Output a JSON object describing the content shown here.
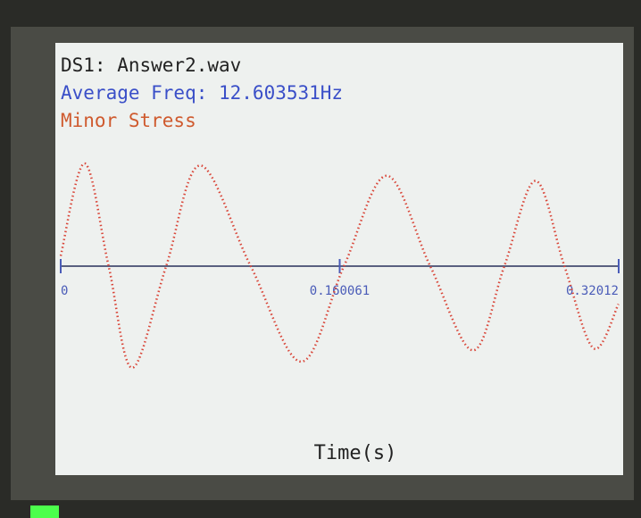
{
  "chart_data": {
    "type": "line",
    "title": "DS1: Answer2.wav",
    "subtitle": "Average Freq: 12.603531Hz",
    "annotation": "Minor Stress",
    "xlabel": "Time(s)",
    "x": [
      0,
      0.0138,
      0.0275,
      0.041,
      0.0605,
      0.08,
      0.109,
      0.138,
      0.1625,
      0.187,
      0.212,
      0.2366,
      0.2545,
      0.2724,
      0.289,
      0.3057,
      0.32
    ],
    "values": [
      0.1,
      1.0,
      0.0,
      -0.99,
      0.0,
      0.98,
      0.0,
      -0.93,
      0.0,
      0.88,
      0.0,
      -0.82,
      0.0,
      0.83,
      0.0,
      -0.8,
      -0.37
    ],
    "color": "#d9473a",
    "xlim": [
      0,
      0.32012
    ],
    "xticks": [
      0,
      0.160061,
      0.32012
    ],
    "ylim": [
      -1.2,
      1.2
    ]
  }
}
